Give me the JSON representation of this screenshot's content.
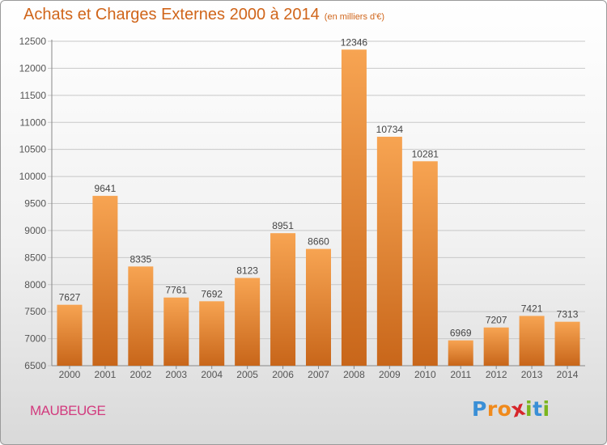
{
  "header": {
    "title": "Achats et Charges Externes 2000 à 2014",
    "subtitle": "(en milliers d'€)"
  },
  "footer": {
    "commune": "MAUBEUGE",
    "brand": [
      "P",
      "r",
      "o",
      "x",
      "i",
      "t",
      "i"
    ],
    "brand_colors": [
      "#3a8fd6",
      "#f08a1c",
      "#f08a1c",
      "#d6262b",
      "#7ab51d",
      "#3a8fd6",
      "#7ab51d"
    ]
  },
  "colors": {
    "bar_top": "#f7a452",
    "bar_bottom": "#c8661a",
    "grid": "#c8c8c8",
    "axis_text": "#555555",
    "title": "#d0651a"
  },
  "chart_data": {
    "type": "bar",
    "categories": [
      "2000",
      "2001",
      "2002",
      "2003",
      "2004",
      "2005",
      "2006",
      "2007",
      "2008",
      "2009",
      "2010",
      "2011",
      "2012",
      "2013",
      "2014"
    ],
    "values": [
      7627,
      9641,
      8335,
      7761,
      7692,
      8123,
      8951,
      8660,
      12346,
      10734,
      10281,
      6969,
      7207,
      7421,
      7313
    ],
    "ylim": [
      6500,
      12500
    ],
    "yticks": [
      6500,
      7000,
      7500,
      8000,
      8500,
      9000,
      9500,
      10000,
      10500,
      11000,
      11500,
      12000,
      12500
    ],
    "grid": true,
    "data_labels": true
  }
}
